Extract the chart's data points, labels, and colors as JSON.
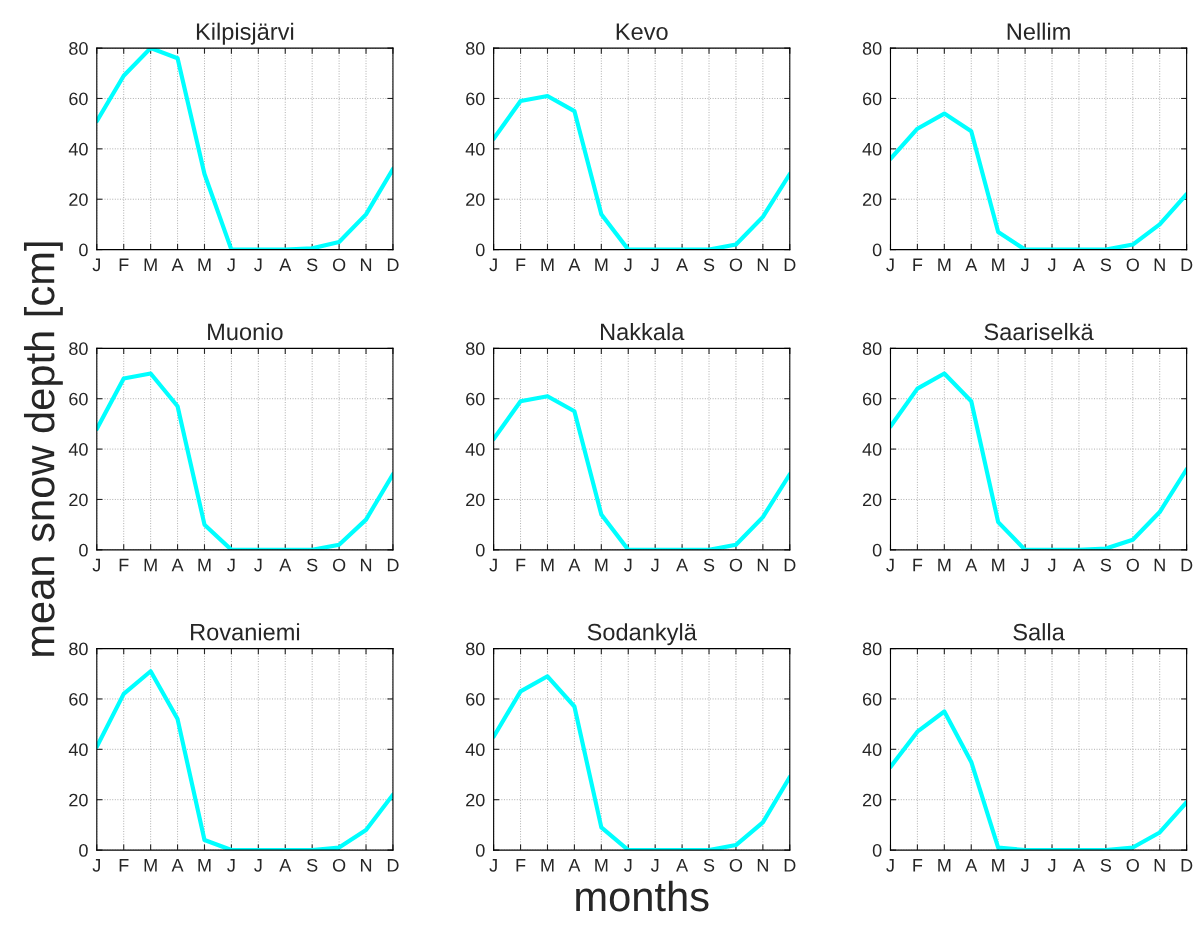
{
  "chart_data": [
    {
      "type": "line",
      "title": "Kilpisjärvi",
      "categories": [
        "J",
        "F",
        "M",
        "A",
        "M",
        "J",
        "J",
        "A",
        "S",
        "O",
        "N",
        "D"
      ],
      "series": [
        {
          "color": "#00ffff",
          "values": [
            51,
            69,
            80,
            76,
            30,
            0,
            0,
            0,
            0.5,
            3,
            14,
            32
          ]
        }
      ],
      "ylim": [
        0,
        80
      ],
      "yticks": [
        0,
        20,
        40,
        60,
        80
      ],
      "grid": true,
      "marker": "none",
      "line_style": "solid"
    },
    {
      "type": "line",
      "title": "Kevo",
      "categories": [
        "J",
        "F",
        "M",
        "A",
        "M",
        "J",
        "J",
        "A",
        "S",
        "O",
        "N",
        "D"
      ],
      "series": [
        {
          "color": "#00ffff",
          "values": [
            44,
            59,
            61,
            55,
            14,
            0,
            0,
            0,
            0,
            2,
            13,
            30
          ]
        }
      ],
      "ylim": [
        0,
        80
      ],
      "yticks": [
        0,
        20,
        40,
        60,
        80
      ],
      "grid": true,
      "marker": "none",
      "line_style": "solid"
    },
    {
      "type": "line",
      "title": "Nellim",
      "categories": [
        "J",
        "F",
        "M",
        "A",
        "M",
        "J",
        "J",
        "A",
        "S",
        "O",
        "N",
        "D"
      ],
      "series": [
        {
          "color": "#00ffff",
          "values": [
            36,
            48,
            54,
            47,
            7,
            0,
            0,
            0,
            0,
            2,
            10,
            22
          ]
        }
      ],
      "ylim": [
        0,
        80
      ],
      "yticks": [
        0,
        20,
        40,
        60,
        80
      ],
      "grid": true,
      "marker": "none",
      "line_style": "solid"
    },
    {
      "type": "line",
      "title": "Muonio",
      "ylabel": "mean snow depth [cm]",
      "categories": [
        "J",
        "F",
        "M",
        "A",
        "M",
        "J",
        "J",
        "A",
        "S",
        "O",
        "N",
        "D"
      ],
      "series": [
        {
          "color": "#00ffff",
          "values": [
            48,
            68,
            70,
            57,
            10,
            0,
            0,
            0,
            0,
            2,
            12,
            30
          ]
        }
      ],
      "ylim": [
        0,
        80
      ],
      "yticks": [
        0,
        20,
        40,
        60,
        80
      ],
      "grid": true,
      "marker": "none",
      "line_style": "solid"
    },
    {
      "type": "line",
      "title": "Nakkala",
      "categories": [
        "J",
        "F",
        "M",
        "A",
        "M",
        "J",
        "J",
        "A",
        "S",
        "O",
        "N",
        "D"
      ],
      "series": [
        {
          "color": "#00ffff",
          "values": [
            44,
            59,
            61,
            55,
            14,
            0,
            0,
            0,
            0,
            2,
            13,
            30
          ]
        }
      ],
      "ylim": [
        0,
        80
      ],
      "yticks": [
        0,
        20,
        40,
        60,
        80
      ],
      "grid": true,
      "marker": "none",
      "line_style": "solid"
    },
    {
      "type": "line",
      "title": "Saariselkä",
      "categories": [
        "J",
        "F",
        "M",
        "A",
        "M",
        "J",
        "J",
        "A",
        "S",
        "O",
        "N",
        "D"
      ],
      "series": [
        {
          "color": "#00ffff",
          "values": [
            49,
            64,
            70,
            59,
            11,
            0,
            0,
            0,
            0.5,
            4,
            15,
            32
          ]
        }
      ],
      "ylim": [
        0,
        80
      ],
      "yticks": [
        0,
        20,
        40,
        60,
        80
      ],
      "grid": true,
      "marker": "none",
      "line_style": "solid"
    },
    {
      "type": "line",
      "title": "Rovaniemi",
      "categories": [
        "J",
        "F",
        "M",
        "A",
        "M",
        "J",
        "J",
        "A",
        "S",
        "O",
        "N",
        "D"
      ],
      "series": [
        {
          "color": "#00ffff",
          "values": [
            41,
            62,
            71,
            52,
            4,
            0,
            0,
            0,
            0,
            1,
            8,
            22
          ]
        }
      ],
      "ylim": [
        0,
        80
      ],
      "yticks": [
        0,
        20,
        40,
        60,
        80
      ],
      "grid": true,
      "marker": "none",
      "line_style": "solid"
    },
    {
      "type": "line",
      "title": "Sodankylä",
      "xlabel": "months",
      "categories": [
        "J",
        "F",
        "M",
        "A",
        "M",
        "J",
        "J",
        "A",
        "S",
        "O",
        "N",
        "D"
      ],
      "series": [
        {
          "color": "#00ffff",
          "values": [
            45,
            63,
            69,
            57,
            9,
            0,
            0,
            0,
            0,
            2,
            11,
            29
          ]
        }
      ],
      "ylim": [
        0,
        80
      ],
      "yticks": [
        0,
        20,
        40,
        60,
        80
      ],
      "grid": true,
      "marker": "none",
      "line_style": "solid"
    },
    {
      "type": "line",
      "title": "Salla",
      "categories": [
        "J",
        "F",
        "M",
        "A",
        "M",
        "J",
        "J",
        "A",
        "S",
        "O",
        "N",
        "D"
      ],
      "series": [
        {
          "color": "#00ffff",
          "values": [
            33,
            47,
            55,
            35,
            1,
            0,
            0,
            0,
            0,
            1,
            7,
            19
          ]
        }
      ],
      "ylim": [
        0,
        80
      ],
      "yticks": [
        0,
        20,
        40,
        60,
        80
      ],
      "grid": true,
      "marker": "none",
      "line_style": "solid"
    }
  ]
}
